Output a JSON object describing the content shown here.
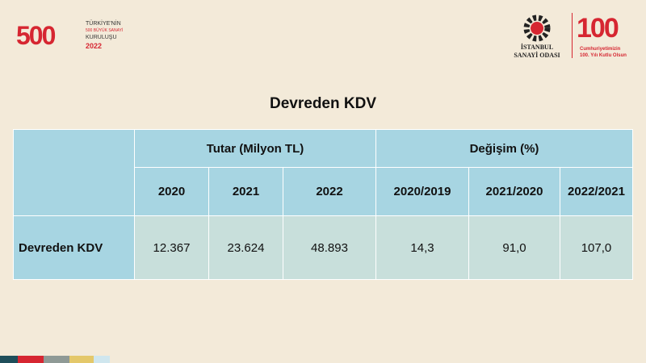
{
  "header": {
    "left_logo": {
      "number": "500",
      "line1": "TÜRKİYE'NİN",
      "line2": "500 BÜYÜK SANAYİ",
      "line3": "KURULUŞU",
      "year": "2022"
    },
    "right_logo": {
      "org_line1": "İSTANBUL",
      "org_line2": "SANAYİ ODASI",
      "number": "100",
      "motto1": "Cumhuriyetimizin",
      "motto2": "100. Yılı Kutlu Olsun"
    }
  },
  "title": "Devreden KDV",
  "table": {
    "groups": [
      "Tutar (Milyon TL)",
      "Değişim (%)"
    ],
    "columns": [
      "2020",
      "2021",
      "2022",
      "2020/2019",
      "2021/2020",
      "2022/2021"
    ],
    "rows": [
      [
        "Devreden KDV",
        "12.367",
        "23.624",
        "48.893",
        "14,3",
        "91,0",
        "107,0"
      ]
    ]
  }
}
